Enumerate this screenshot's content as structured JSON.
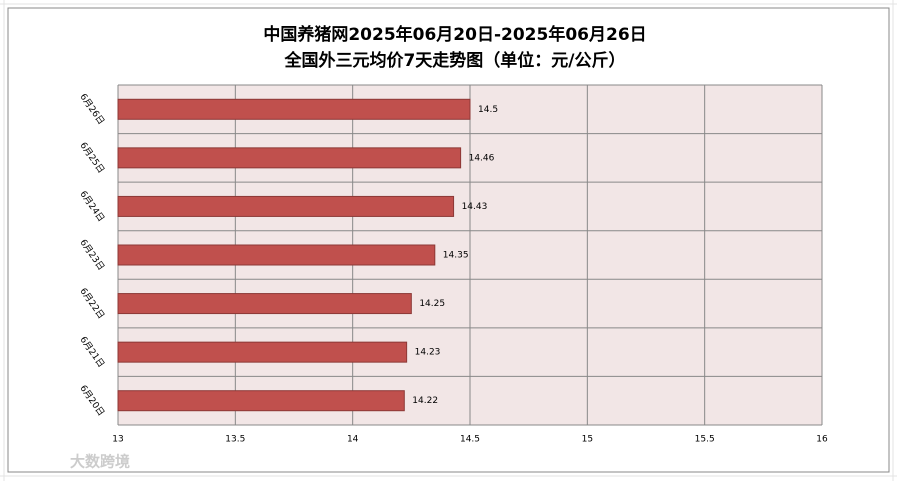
{
  "chart_data": {
    "type": "hbar",
    "title": "中国养猪网2025年06月20日-2025年06月26日",
    "subtitle": "全国外三元均价7天走势图（单位：元/公斤）",
    "categories": [
      "6月20日",
      "6月21日",
      "6月22日",
      "6月23日",
      "6月24日",
      "6月25日",
      "6月26日"
    ],
    "values": [
      14.22,
      14.23,
      14.25,
      14.35,
      14.43,
      14.46,
      14.5
    ],
    "color": "#c0504d",
    "xlim": [
      13,
      16
    ],
    "xticks": [
      13,
      13.5,
      14,
      14.5,
      15,
      15.5,
      16
    ],
    "grid": true
  },
  "watermark": "大数跨境"
}
